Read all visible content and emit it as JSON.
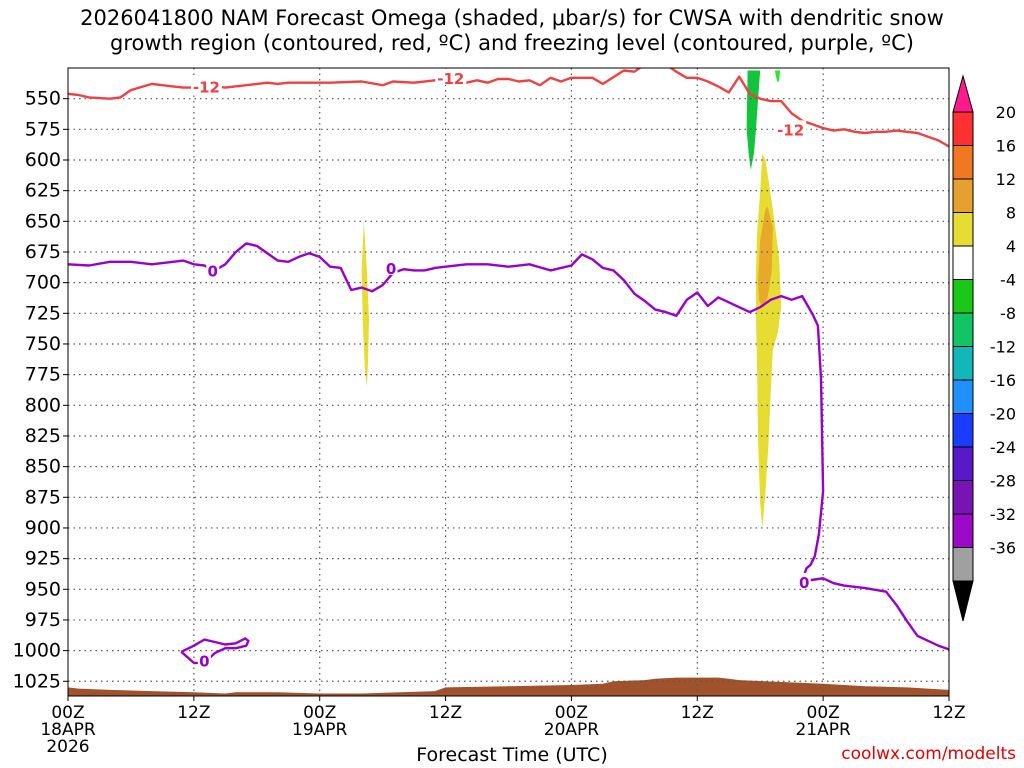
{
  "title": {
    "line1": "2026041800 NAM Forecast Omega (shaded, μbar/s) for CWSA with dendritic snow",
    "line2": "growth region (contoured, red, ºC) and freezing level (contoured, purple, ºC)"
  },
  "credit": "coolwx.com/modelts",
  "colors": {
    "dgz_line": "#f04040",
    "freezing_line": "#9900cc",
    "terrain": "#a0522d",
    "yellow": "#e6dc32",
    "orange": "#e8a82a",
    "green_dark": "#12c43c",
    "green_light": "#2ee82e",
    "grid": "#555555"
  },
  "chart_data": {
    "type": "time-height",
    "xlabel": "Forecast Time (UTC)",
    "x_range_hours": [
      0,
      84
    ],
    "y_range_hPa": [
      525,
      1037
    ],
    "y_ticks": [
      550,
      575,
      600,
      625,
      650,
      675,
      700,
      725,
      750,
      775,
      800,
      825,
      850,
      875,
      900,
      925,
      950,
      975,
      1000,
      1025
    ],
    "x_ticks": [
      {
        "h": 0,
        "l1": "00Z",
        "l2": "18APR",
        "l3": "2026"
      },
      {
        "h": 12,
        "l1": "12Z",
        "l2": "",
        "l3": ""
      },
      {
        "h": 24,
        "l1": "00Z",
        "l2": "19APR",
        "l3": ""
      },
      {
        "h": 36,
        "l1": "12Z",
        "l2": "",
        "l3": ""
      },
      {
        "h": 48,
        "l1": "00Z",
        "l2": "20APR",
        "l3": ""
      },
      {
        "h": 60,
        "l1": "12Z",
        "l2": "",
        "l3": ""
      },
      {
        "h": 72,
        "l1": "00Z",
        "l2": "21APR",
        "l3": ""
      },
      {
        "h": 84,
        "l1": "12Z",
        "l2": "",
        "l3": ""
      }
    ],
    "colorbar": {
      "levels": [
        "20",
        "16",
        "12",
        "8",
        "4",
        "-4",
        "-8",
        "-12",
        "-16",
        "-20",
        "-24",
        "-28",
        "-32",
        "-36"
      ],
      "colors": [
        "#ff1a8c",
        "#ff3030",
        "#f07820",
        "#e6a030",
        "#e6dc32",
        "#ffffff",
        "#19c819",
        "#12c464",
        "#12b8b8",
        "#2090ff",
        "#1a3cff",
        "#5a19c8",
        "#7814b4",
        "#9a0ac8",
        "#a0a0a0",
        "#000000"
      ]
    },
    "dgz_label": "-12",
    "dgz_contour_minus12": {
      "hours": [
        0,
        1,
        2,
        4,
        5,
        6,
        8,
        10,
        11,
        12,
        13,
        14,
        15,
        17,
        19,
        20,
        21,
        23,
        25,
        28,
        30,
        31,
        33,
        35,
        36,
        37,
        38,
        39,
        40,
        41,
        42,
        43,
        44,
        45,
        46,
        47,
        48,
        49,
        50,
        51,
        53,
        54,
        55,
        56,
        57,
        58,
        59,
        60,
        61,
        62,
        63,
        64,
        65,
        66,
        67,
        68,
        69,
        70,
        71,
        72,
        73,
        74,
        75,
        76,
        77,
        78,
        79,
        80,
        81,
        82,
        83,
        84
      ],
      "hPa": [
        546,
        547,
        549,
        550,
        549,
        543,
        538,
        540,
        541,
        541,
        540,
        540,
        541,
        539,
        537,
        538,
        537,
        537,
        537,
        536,
        539,
        536,
        537,
        535,
        537,
        535,
        537,
        535,
        537,
        534,
        534,
        536,
        535,
        539,
        533,
        536,
        533,
        533,
        533,
        538,
        527,
        528,
        522,
        522,
        522,
        528,
        533,
        533,
        536,
        540,
        545,
        532,
        546,
        550,
        552,
        552,
        562,
        568,
        571,
        574,
        576,
        575,
        577,
        578,
        577,
        577,
        576,
        577,
        578,
        581,
        584,
        589
      ]
    },
    "freezing_label": "0",
    "freezing_main": {
      "hours": [
        0,
        2,
        4,
        6,
        8,
        10,
        11,
        12,
        13,
        14,
        15,
        16,
        17,
        18,
        20,
        21,
        22,
        23,
        24,
        25,
        26,
        27,
        28,
        29,
        30,
        31,
        32,
        33,
        34,
        35,
        36,
        38,
        40,
        42,
        44,
        46,
        48,
        49,
        50,
        51,
        52,
        53,
        54,
        55,
        56,
        57,
        58,
        59,
        60,
        61,
        62,
        63,
        64,
        65,
        66,
        67,
        68,
        69,
        70,
        71,
        71.5,
        71.8,
        72,
        71.6,
        71.2,
        70.8,
        70.4,
        70.2,
        70.4,
        71.2,
        72,
        73,
        74,
        76,
        78,
        79,
        80,
        81,
        82,
        83,
        84
      ],
      "hPa": [
        685,
        686,
        683,
        683,
        685,
        683,
        682,
        685,
        686,
        690,
        685,
        675,
        668,
        670,
        682,
        683,
        679,
        676,
        679,
        687,
        688,
        706,
        704,
        707,
        702,
        692,
        689,
        690,
        690,
        688,
        687,
        685,
        685,
        687,
        685,
        690,
        686,
        677,
        681,
        688,
        690,
        698,
        709,
        715,
        722,
        724,
        727,
        714,
        708,
        719,
        712,
        716,
        720,
        724,
        720,
        714,
        711,
        714,
        711,
        726,
        735,
        778,
        870,
        905,
        923,
        930,
        933,
        938,
        943,
        942,
        941,
        945,
        947,
        949,
        952,
        963,
        976,
        988,
        992,
        996,
        999
      ]
    },
    "freezing_closed": {
      "hours": [
        10.8,
        12,
        13,
        14,
        15,
        16,
        16.9,
        17.2,
        17,
        16,
        15,
        14,
        13,
        12,
        10.8
      ],
      "hPa": [
        1001,
        996,
        991,
        993,
        995,
        994,
        990,
        992,
        996,
        998,
        998,
        1002,
        1010,
        1010,
        1001
      ]
    },
    "terrain": {
      "hours": [
        0,
        1,
        4,
        8,
        12,
        15,
        16,
        20,
        24,
        28,
        35,
        36,
        42,
        48,
        51,
        52,
        55,
        56,
        58,
        60,
        62,
        63,
        64,
        72,
        76,
        80,
        84
      ],
      "hPa": [
        1030,
        1031,
        1032,
        1033,
        1034,
        1035,
        1034,
        1034,
        1035,
        1035,
        1033,
        1030,
        1029,
        1028,
        1027,
        1025,
        1024,
        1023,
        1022,
        1022,
        1022,
        1023,
        1024,
        1027,
        1029,
        1030,
        1032
      ]
    },
    "shaded": [
      {
        "name": "yellow-thin",
        "color": "yellow",
        "hours": [
          28.2,
          28.5,
          28.7,
          28.6,
          28.5,
          28.3,
          28.1,
          28.0,
          28.2
        ],
        "hPa": [
          650,
          690,
          730,
          765,
          785,
          770,
          730,
          690,
          650
        ]
      },
      {
        "name": "yellow-big",
        "color": "yellow",
        "hours": [
          66.2,
          66.5,
          67.2,
          67.8,
          68.0,
          67.7,
          67.2,
          67.0,
          66.8,
          66.5,
          66.2,
          66.0,
          65.8,
          65.7,
          65.6,
          65.6,
          65.7,
          66.0,
          66.2
        ],
        "hPa": [
          595,
          600,
          640,
          680,
          720,
          740,
          755,
          790,
          830,
          870,
          900,
          880,
          830,
          770,
          730,
          690,
          660,
          625,
          595
        ]
      },
      {
        "name": "orange",
        "color": "orange",
        "hours": [
          66.7,
          67.2,
          67.1,
          66.7,
          66.3,
          65.9,
          65.8,
          66.0,
          66.5,
          66.7
        ],
        "hPa": [
          638,
          655,
          690,
          712,
          720,
          715,
          700,
          665,
          640,
          638
        ]
      },
      {
        "name": "green-main",
        "color": "green_dark",
        "hours": [
          64.8,
          66.0,
          65.8,
          65.6,
          65.4,
          65.1,
          64.9,
          64.7,
          64.8
        ],
        "hPa": [
          527,
          527,
          550,
          575,
          595,
          608,
          595,
          575,
          527
        ]
      },
      {
        "name": "green-small",
        "color": "green_light",
        "hours": [
          67.4,
          67.9,
          67.8,
          67.6,
          67.4
        ],
        "hPa": [
          527,
          527,
          536,
          536,
          527
        ]
      }
    ]
  }
}
